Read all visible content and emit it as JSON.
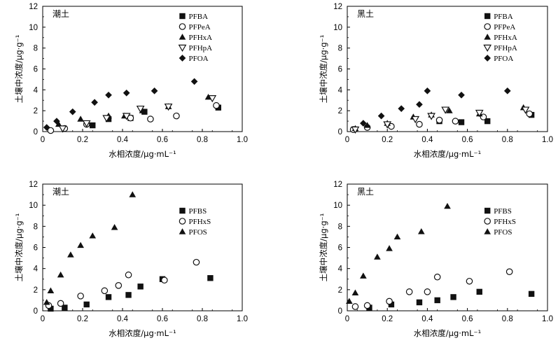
{
  "chart_data": [
    {
      "type": "scatter",
      "title": "潮土",
      "xlabel": "水相浓度/μg·mL⁻¹",
      "ylabel": "土壤中浓度/μg·g⁻¹",
      "xlim": [
        0,
        1.0
      ],
      "ylim": [
        0,
        12
      ],
      "xticks": [
        "0",
        "0.2",
        "0.4",
        "0.6",
        "0.8",
        "1.0"
      ],
      "yticks": [
        "0",
        "2",
        "4",
        "6",
        "8",
        "10",
        "12"
      ],
      "legend": "top-right",
      "series": [
        {
          "name": "PFBA",
          "marker": "square",
          "points": [
            [
              0.33,
              1.2
            ],
            [
              0.44,
              1.3
            ],
            [
              0.51,
              1.9
            ],
            [
              0.88,
              2.3
            ],
            [
              0.25,
              0.6
            ]
          ]
        },
        {
          "name": "PFPeA",
          "marker": "circle-open",
          "points": [
            [
              0.04,
              0.1
            ],
            [
              0.11,
              0.3
            ],
            [
              0.22,
              0.7
            ],
            [
              0.44,
              1.3
            ],
            [
              0.54,
              1.2
            ],
            [
              0.67,
              1.5
            ],
            [
              0.87,
              2.5
            ]
          ]
        },
        {
          "name": "PFHxA",
          "marker": "triangle",
          "points": [
            [
              0.08,
              0.7
            ],
            [
              0.19,
              1.2
            ],
            [
              0.33,
              1.5
            ],
            [
              0.41,
              1.5
            ],
            [
              0.5,
              2.0
            ],
            [
              0.63,
              2.4
            ],
            [
              0.83,
              3.3
            ]
          ]
        },
        {
          "name": "PFHpA",
          "marker": "triangle-down-open",
          "points": [
            [
              0.1,
              0.3
            ],
            [
              0.22,
              0.8
            ],
            [
              0.32,
              1.3
            ],
            [
              0.42,
              1.5
            ],
            [
              0.49,
              2.2
            ],
            [
              0.63,
              2.4
            ],
            [
              0.85,
              3.2
            ]
          ]
        },
        {
          "name": "PFOA",
          "marker": "diamond",
          "points": [
            [
              0.02,
              0.4
            ],
            [
              0.07,
              1.0
            ],
            [
              0.15,
              1.9
            ],
            [
              0.26,
              2.8
            ],
            [
              0.33,
              3.5
            ],
            [
              0.42,
              3.7
            ],
            [
              0.56,
              3.9
            ],
            [
              0.76,
              4.8
            ]
          ]
        }
      ]
    },
    {
      "type": "scatter",
      "title": "黑土",
      "xlabel": "水相浓度/μg·mL⁻¹",
      "ylabel": "土壤中浓度/μg·g⁻¹",
      "xlim": [
        0,
        1.0
      ],
      "ylim": [
        0,
        12
      ],
      "xticks": [
        "0",
        "0.2",
        "0.4",
        "0.6",
        "0.8",
        "1.0"
      ],
      "yticks": [
        "0",
        "2",
        "4",
        "6",
        "8",
        "10",
        "12"
      ],
      "legend": "top-right",
      "series": [
        {
          "name": "PFBA",
          "marker": "square",
          "points": [
            [
              0.46,
              1.0
            ],
            [
              0.57,
              0.9
            ],
            [
              0.7,
              1.0
            ],
            [
              0.92,
              1.6
            ]
          ]
        },
        {
          "name": "PFPeA",
          "marker": "circle-open",
          "points": [
            [
              0.03,
              0.2
            ],
            [
              0.1,
              0.4
            ],
            [
              0.22,
              0.5
            ],
            [
              0.36,
              0.7
            ],
            [
              0.46,
              1.1
            ],
            [
              0.54,
              1.0
            ],
            [
              0.68,
              1.4
            ],
            [
              0.91,
              1.7
            ]
          ]
        },
        {
          "name": "PFHxA",
          "marker": "triangle",
          "points": [
            [
              0.04,
              0.3
            ],
            [
              0.1,
              0.6
            ],
            [
              0.2,
              0.8
            ],
            [
              0.33,
              1.4
            ],
            [
              0.42,
              1.6
            ],
            [
              0.51,
              2.0
            ],
            [
              0.66,
              1.7
            ],
            [
              0.88,
              2.3
            ]
          ]
        },
        {
          "name": "PFHpA",
          "marker": "triangle-down-open",
          "points": [
            [
              0.04,
              0.2
            ],
            [
              0.2,
              0.7
            ],
            [
              0.34,
              1.2
            ],
            [
              0.42,
              1.5
            ],
            [
              0.49,
              2.1
            ],
            [
              0.66,
              1.8
            ],
            [
              0.89,
              2.1
            ]
          ]
        },
        {
          "name": "PFOA",
          "marker": "diamond",
          "points": [
            [
              0.08,
              0.8
            ],
            [
              0.17,
              1.5
            ],
            [
              0.27,
              2.2
            ],
            [
              0.36,
              2.6
            ],
            [
              0.4,
              3.9
            ],
            [
              0.57,
              3.5
            ],
            [
              0.8,
              3.9
            ]
          ]
        }
      ]
    },
    {
      "type": "scatter",
      "title": "潮土",
      "xlabel": "水相浓度/μg·mL⁻¹",
      "ylabel": "土壤中浓度/μg·g⁻¹",
      "xlim": [
        0,
        1.0
      ],
      "ylim": [
        0,
        12
      ],
      "xticks": [
        "0",
        "0.2",
        "0.4",
        "0.6",
        "0.8",
        "1.0"
      ],
      "yticks": [
        "0",
        "2",
        "4",
        "6",
        "8",
        "10",
        "12"
      ],
      "legend": "top-right",
      "series": [
        {
          "name": "PFBS",
          "marker": "square",
          "points": [
            [
              0.04,
              0.2
            ],
            [
              0.11,
              0.3
            ],
            [
              0.22,
              0.6
            ],
            [
              0.33,
              1.3
            ],
            [
              0.43,
              1.5
            ],
            [
              0.49,
              2.3
            ],
            [
              0.6,
              3.0
            ],
            [
              0.84,
              3.1
            ]
          ]
        },
        {
          "name": "PFHxS",
          "marker": "circle-open",
          "points": [
            [
              0.03,
              0.5
            ],
            [
              0.09,
              0.7
            ],
            [
              0.19,
              1.4
            ],
            [
              0.31,
              1.9
            ],
            [
              0.38,
              2.4
            ],
            [
              0.43,
              3.4
            ],
            [
              0.61,
              2.9
            ],
            [
              0.77,
              4.6
            ]
          ]
        },
        {
          "name": "PFOS",
          "marker": "triangle",
          "points": [
            [
              0.02,
              0.8
            ],
            [
              0.04,
              1.9
            ],
            [
              0.09,
              3.4
            ],
            [
              0.14,
              5.3
            ],
            [
              0.19,
              6.2
            ],
            [
              0.25,
              7.1
            ],
            [
              0.36,
              7.9
            ],
            [
              0.45,
              11.0
            ]
          ]
        }
      ]
    },
    {
      "type": "scatter",
      "title": "黑土",
      "xlabel": "水相浓度/μg·mL⁻¹",
      "ylabel": "土壤中浓度/μg·g⁻¹",
      "xlim": [
        0,
        1.0
      ],
      "ylim": [
        0,
        12
      ],
      "xticks": [
        "0",
        "0.2",
        "0.4",
        "0.6",
        "0.8",
        "1.0"
      ],
      "yticks": [
        "0",
        "2",
        "4",
        "6",
        "8",
        "10",
        "12"
      ],
      "legend": "top-right",
      "series": [
        {
          "name": "PFBS",
          "marker": "square",
          "points": [
            [
              0.11,
              0.3
            ],
            [
              0.22,
              0.6
            ],
            [
              0.36,
              0.8
            ],
            [
              0.45,
              1.0
            ],
            [
              0.53,
              1.3
            ],
            [
              0.66,
              1.8
            ],
            [
              0.92,
              1.6
            ]
          ]
        },
        {
          "name": "PFHxS",
          "marker": "circle-open",
          "points": [
            [
              0.04,
              0.4
            ],
            [
              0.1,
              0.5
            ],
            [
              0.21,
              0.9
            ],
            [
              0.31,
              1.8
            ],
            [
              0.4,
              1.8
            ],
            [
              0.45,
              3.2
            ],
            [
              0.61,
              2.8
            ],
            [
              0.81,
              3.7
            ]
          ]
        },
        {
          "name": "PFOS",
          "marker": "triangle",
          "points": [
            [
              0.01,
              0.9
            ],
            [
              0.04,
              1.7
            ],
            [
              0.08,
              3.3
            ],
            [
              0.15,
              5.1
            ],
            [
              0.21,
              5.9
            ],
            [
              0.25,
              7.0
            ],
            [
              0.37,
              7.5
            ],
            [
              0.5,
              9.9
            ]
          ]
        }
      ]
    }
  ]
}
